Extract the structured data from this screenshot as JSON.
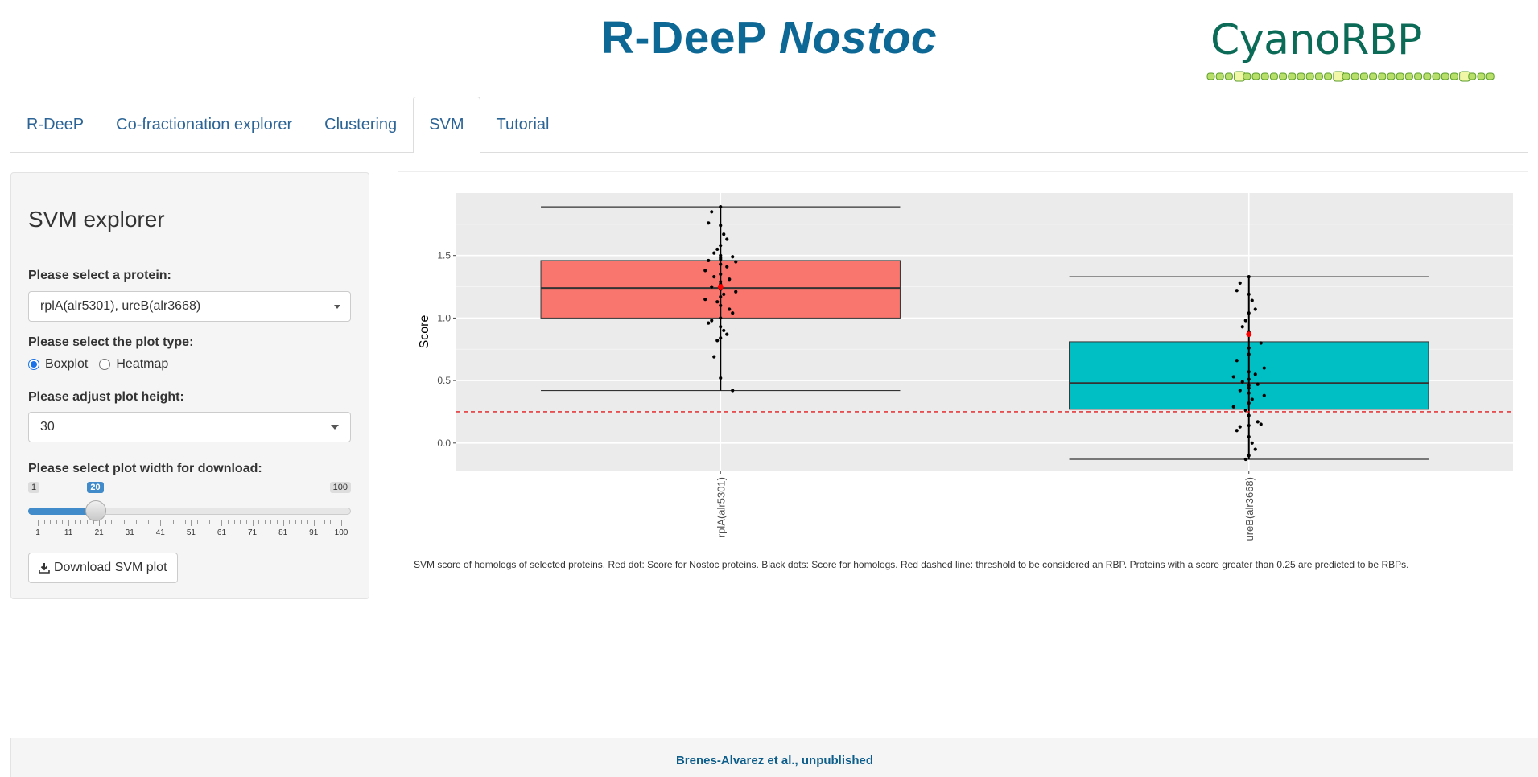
{
  "header": {
    "title_main": "R-DeeP",
    "title_italic": "Nostoc",
    "logo_text": "CyanoRBP",
    "logo_icon": "filament-chain-icon"
  },
  "tabs": [
    {
      "label": "R-DeeP",
      "active": false
    },
    {
      "label": "Co-fractionation explorer",
      "active": false
    },
    {
      "label": "Clustering",
      "active": false
    },
    {
      "label": "SVM",
      "active": true
    },
    {
      "label": "Tutorial",
      "active": false
    }
  ],
  "sidebar": {
    "title": "SVM explorer",
    "protein_label": "Please select a protein:",
    "protein_value": "rplA(alr5301), ureB(alr3668)",
    "plot_type_label": "Please select the plot type:",
    "plot_type_options": [
      "Boxplot",
      "Heatmap"
    ],
    "plot_type_selected": "Boxplot",
    "height_label": "Please adjust plot height:",
    "height_value": "30",
    "width_label": "Please select plot width for download:",
    "width_min": "1",
    "width_max": "100",
    "width_value": "20",
    "width_ticks": [
      "1",
      "11",
      "21",
      "31",
      "41",
      "51",
      "61",
      "71",
      "81",
      "91",
      "100"
    ],
    "download_label": "Download SVM plot",
    "download_icon": "download-icon"
  },
  "chart_data": {
    "type": "box",
    "title": "",
    "xlabel": "",
    "ylabel": "Score",
    "ylim": [
      -0.22,
      2.0
    ],
    "yticks": [
      "0.0",
      "0.5",
      "1.0",
      "1.5"
    ],
    "grid": true,
    "categories": [
      "rplA(alr5301)",
      "ureB(alr3668)"
    ],
    "threshold": 0.25,
    "colors": {
      "rplA(alr5301)": "#f8766d",
      "ureB(alr3668)": "#00bfc4",
      "threshold": "#e41a1c",
      "highlight_point": "#ff0000",
      "panel": "#ebebeb"
    },
    "boxes": [
      {
        "category": "rplA(alr5301)",
        "whisker_low": 0.42,
        "q1": 1.0,
        "median": 1.24,
        "q3": 1.46,
        "whisker_high": 1.89,
        "highlight": 1.25,
        "points": [
          1.89,
          1.85,
          1.76,
          1.74,
          1.67,
          1.63,
          1.58,
          1.55,
          1.52,
          1.5,
          1.49,
          1.48,
          1.47,
          1.46,
          1.45,
          1.43,
          1.41,
          1.38,
          1.35,
          1.33,
          1.31,
          1.29,
          1.27,
          1.25,
          1.23,
          1.21,
          1.19,
          1.17,
          1.15,
          1.13,
          1.1,
          1.07,
          1.04,
          1.0,
          0.98,
          0.96,
          0.93,
          0.9,
          0.87,
          0.84,
          0.82,
          0.69,
          0.52,
          0.42
        ]
      },
      {
        "category": "ureB(alr3668)",
        "whisker_low": -0.13,
        "q1": 0.27,
        "median": 0.48,
        "q3": 0.81,
        "whisker_high": 1.33,
        "highlight": 0.87,
        "points": [
          1.33,
          1.28,
          1.22,
          1.19,
          1.14,
          1.07,
          1.04,
          0.98,
          0.93,
          0.89,
          0.8,
          0.76,
          0.71,
          0.66,
          0.6,
          0.57,
          0.55,
          0.53,
          0.51,
          0.49,
          0.47,
          0.46,
          0.44,
          0.42,
          0.4,
          0.38,
          0.35,
          0.32,
          0.29,
          0.26,
          0.22,
          0.17,
          0.15,
          0.14,
          0.13,
          0.1,
          0.05,
          0.0,
          -0.05,
          -0.1,
          -0.13
        ]
      }
    ]
  },
  "caption": "SVM score of homologs of selected proteins. Red dot: Score for Nostoc proteins. Black dots: Score for homologs. Red dashed line: threshold to be considered an RBP. Proteins with a score greater than 0.25 are predicted to be RBPs.",
  "footer": "Brenes-Alvarez et al., unpublished"
}
